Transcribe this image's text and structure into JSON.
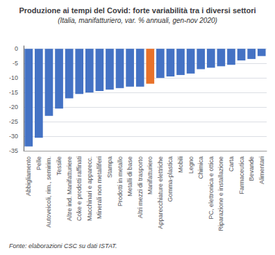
{
  "chart_data": {
    "type": "bar",
    "title": "Produzione ai tempi del Covid: forte variabilità tra i diversi settori",
    "subtitle": "(Italia, manifatturiero, var. % annuali, gen-nov 2020)",
    "footnote": "Fonte: elaborazioni CSC su dati ISTAT.",
    "categories": [
      "Abbigliamento",
      "Pelle",
      "Autoveicoli, rim., semirim.",
      "Tessile",
      "Altre ind. Manifatturiere",
      "Coke e prodotti raffinati",
      "Macchinari e apparecc.",
      "Minerali non metalliferi",
      "Stampa",
      "Prodotti in metallo",
      "Metalli di base",
      "Altri mezzi di trasporto",
      "Manifatturiero",
      "Apparecchiature elettriche",
      "Gomma-plastica",
      "Mobili",
      "Legno",
      "Chimica",
      "PC, elettronica e ottica",
      "Riparazione e installazione",
      "Carta",
      "Farmaceutica",
      "Bevande",
      "Alimentari"
    ],
    "values": [
      -33.5,
      -30.5,
      -23.0,
      -20.5,
      -17.0,
      -15.5,
      -15.0,
      -14.5,
      -14.0,
      -13.5,
      -13.0,
      -13.0,
      -12.0,
      -10.0,
      -9.5,
      -9.0,
      -8.5,
      -7.0,
      -6.5,
      -6.0,
      -5.5,
      -4.0,
      -3.5,
      -2.5
    ],
    "colors": [
      "#4472C4",
      "#4472C4",
      "#4472C4",
      "#4472C4",
      "#4472C4",
      "#4472C4",
      "#4472C4",
      "#4472C4",
      "#4472C4",
      "#4472C4",
      "#4472C4",
      "#4472C4",
      "#E8722A",
      "#4472C4",
      "#4472C4",
      "#4472C4",
      "#4472C4",
      "#4472C4",
      "#4472C4",
      "#4472C4",
      "#4472C4",
      "#4472C4",
      "#4472C4",
      "#4472C4"
    ],
    "ylim": [
      -35,
      1
    ],
    "yticks": [
      0,
      -5,
      -10,
      -15,
      -20,
      -25,
      -30,
      -35
    ],
    "grid": true
  }
}
